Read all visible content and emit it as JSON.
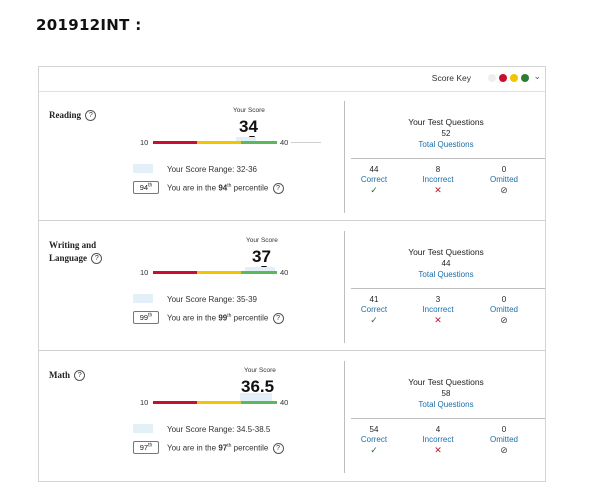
{
  "page_title": "201912INT  :",
  "score_key": {
    "label": "Score Key",
    "colors": [
      "#eeeeee",
      "#c8102e",
      "#f2c500",
      "#2e7d32"
    ]
  },
  "labels": {
    "your_score": "Your Score",
    "score_range_prefix": "Your Score Range: ",
    "percentile_prefix": "You are in the ",
    "percentile_suffix": " percentile",
    "th": "th",
    "your_test_questions": "Your Test Questions",
    "total_questions": "Total Questions",
    "correct": "Correct",
    "incorrect": "Incorrect",
    "omitted": "Omitted",
    "help": "?"
  },
  "bar_colors": {
    "red": "#c8102e",
    "yellow": "#f2c500",
    "green": "#5cb85c"
  },
  "sections": [
    {
      "title": "Reading",
      "score": "34",
      "bar_min": "10",
      "bar_max": "40",
      "score_range": "32-36",
      "percentile": "94",
      "questions_total": "52",
      "correct": "44",
      "incorrect": "8",
      "omitted": "0"
    },
    {
      "title": "Writing and Language",
      "score": "37",
      "bar_min": "10",
      "bar_max": "40",
      "score_range": "35-39",
      "percentile": "99",
      "questions_total": "44",
      "correct": "41",
      "incorrect": "3",
      "omitted": "0"
    },
    {
      "title": "Math",
      "score": "36.5",
      "bar_min": "10",
      "bar_max": "40",
      "score_range": "34.5-38.5",
      "percentile": "97",
      "questions_total": "58",
      "correct": "54",
      "incorrect": "4",
      "omitted": "0"
    }
  ],
  "icons": {
    "correct": "check-icon",
    "incorrect": "x-icon",
    "omitted": "omitted-icon",
    "expand": "chevron-down-icon"
  }
}
